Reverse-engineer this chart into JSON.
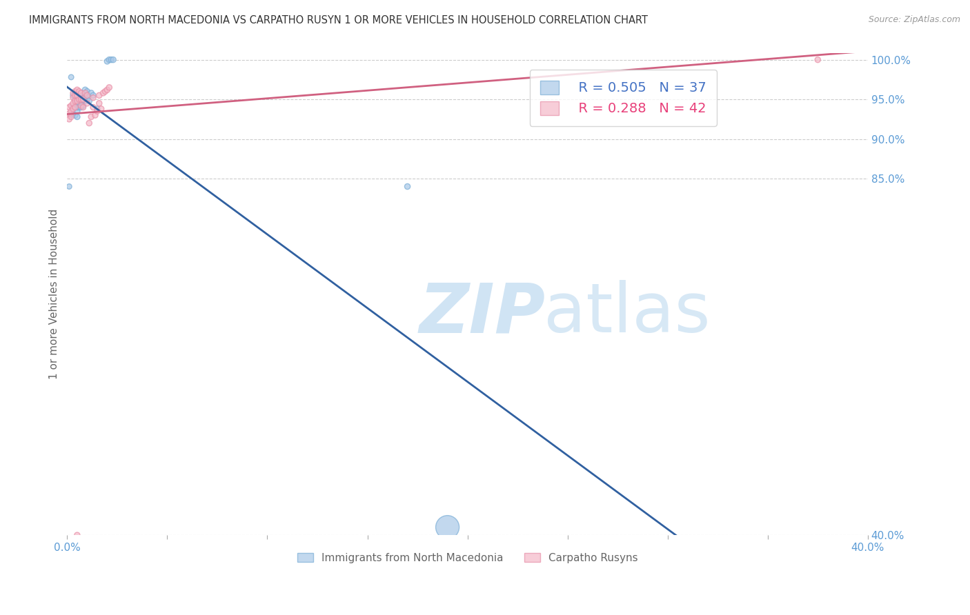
{
  "title": "IMMIGRANTS FROM NORTH MACEDONIA VS CARPATHO RUSYN 1 OR MORE VEHICLES IN HOUSEHOLD CORRELATION CHART",
  "source": "Source: ZipAtlas.com",
  "ylabel": "1 or more Vehicles in Household",
  "xlim": [
    0.0,
    0.4
  ],
  "ylim": [
    0.4,
    1.008
  ],
  "xticks": [
    0.0,
    0.05,
    0.1,
    0.15,
    0.2,
    0.25,
    0.3,
    0.35,
    0.4
  ],
  "xticklabels": [
    "0.0%",
    "",
    "",
    "",
    "",
    "",
    "",
    "",
    "40.0%"
  ],
  "yticks": [
    0.4,
    0.85,
    0.9,
    0.95,
    1.0
  ],
  "yticklabels": [
    "40.0%",
    "85.0%",
    "90.0%",
    "95.0%",
    "100.0%"
  ],
  "blue_color": "#a8c8e8",
  "pink_color": "#f4b8c8",
  "blue_edge_color": "#7baed6",
  "pink_edge_color": "#e890a8",
  "blue_line_color": "#3060a0",
  "pink_line_color": "#d06080",
  "legend_blue_R": "R = 0.505",
  "legend_blue_N": "N = 37",
  "legend_pink_R": "R = 0.288",
  "legend_pink_N": "N = 42",
  "background_color": "#ffffff",
  "grid_color": "#cccccc",
  "title_color": "#333333",
  "axis_label_color": "#666666",
  "tick_color": "#5b9bd5",
  "legend_blue_color": "#4472c4",
  "legend_pink_color": "#e8407a",
  "blue_x": [
    0.001,
    0.002,
    0.002,
    0.003,
    0.003,
    0.003,
    0.004,
    0.004,
    0.004,
    0.005,
    0.005,
    0.005,
    0.005,
    0.006,
    0.006,
    0.006,
    0.007,
    0.007,
    0.007,
    0.008,
    0.008,
    0.009,
    0.009,
    0.009,
    0.01,
    0.01,
    0.01,
    0.011,
    0.012,
    0.013,
    0.015,
    0.02,
    0.021,
    0.022,
    0.023,
    0.17,
    0.19
  ],
  "blue_y": [
    0.84,
    0.93,
    0.978,
    0.932,
    0.94,
    0.955,
    0.93,
    0.94,
    0.95,
    0.928,
    0.935,
    0.94,
    0.95,
    0.94,
    0.948,
    0.955,
    0.94,
    0.948,
    0.958,
    0.942,
    0.952,
    0.948,
    0.955,
    0.962,
    0.95,
    0.955,
    0.96,
    0.948,
    0.958,
    0.955,
    0.938,
    0.998,
    1.0,
    1.0,
    1.0,
    0.84,
    0.41
  ],
  "blue_sizes": [
    30,
    30,
    30,
    35,
    35,
    35,
    35,
    35,
    35,
    35,
    35,
    35,
    35,
    35,
    35,
    35,
    35,
    35,
    35,
    35,
    35,
    35,
    35,
    35,
    35,
    35,
    35,
    35,
    35,
    35,
    35,
    35,
    35,
    35,
    35,
    35,
    600
  ],
  "pink_x": [
    0.001,
    0.001,
    0.001,
    0.002,
    0.002,
    0.002,
    0.003,
    0.003,
    0.003,
    0.003,
    0.004,
    0.004,
    0.004,
    0.004,
    0.005,
    0.005,
    0.005,
    0.006,
    0.006,
    0.007,
    0.007,
    0.007,
    0.008,
    0.008,
    0.009,
    0.01,
    0.01,
    0.011,
    0.012,
    0.013,
    0.013,
    0.014,
    0.015,
    0.016,
    0.016,
    0.017,
    0.018,
    0.019,
    0.02,
    0.021,
    0.375,
    0.005
  ],
  "pink_y": [
    0.925,
    0.932,
    0.94,
    0.928,
    0.935,
    0.942,
    0.938,
    0.945,
    0.952,
    0.958,
    0.94,
    0.948,
    0.955,
    0.96,
    0.948,
    0.955,
    0.962,
    0.95,
    0.96,
    0.942,
    0.95,
    0.958,
    0.94,
    0.95,
    0.958,
    0.945,
    0.955,
    0.92,
    0.928,
    0.94,
    0.952,
    0.93,
    0.935,
    0.945,
    0.955,
    0.938,
    0.958,
    0.96,
    0.962,
    0.965,
    1.0,
    0.4
  ],
  "pink_sizes": [
    35,
    35,
    35,
    35,
    35,
    35,
    35,
    35,
    35,
    35,
    35,
    35,
    35,
    35,
    35,
    35,
    35,
    35,
    35,
    35,
    35,
    35,
    35,
    35,
    35,
    35,
    35,
    35,
    35,
    35,
    35,
    35,
    35,
    35,
    35,
    35,
    35,
    35,
    35,
    35,
    35,
    35
  ],
  "watermark_zip": "ZIP",
  "watermark_atlas": "atlas",
  "watermark_color": "#d0e4f4",
  "legend_label_blue": "Immigrants from North Macedonia",
  "legend_label_pink": "Carpatho Rusyns"
}
